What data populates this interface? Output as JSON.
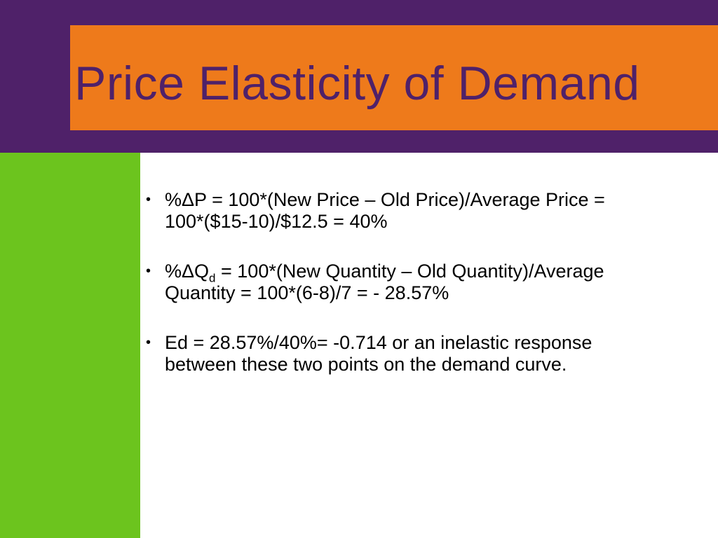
{
  "slide": {
    "title": "Price Elasticity of Demand",
    "bullets": [
      {
        "line1": "%ΔP = 100*(New Price – Old Price)/Average Price =",
        "line2": "100*($15-10)/$12.5 = 40%"
      },
      {
        "line1_prefix": "%ΔQ",
        "line1_subscript": "d",
        "line1_rest": " = 100*(New Quantity – Old Quantity)/Average",
        "line2": "Quantity = 100*(6-8)/7 = - 28.57%"
      },
      {
        "line1": "Ed = 28.57%/40%= -0.714 or an inelastic response",
        "line2": "between these two points on the demand curve."
      }
    ]
  },
  "colors": {
    "purple": "#4f2169",
    "orange": "#ee7a1b",
    "green": "#6cc41e"
  }
}
